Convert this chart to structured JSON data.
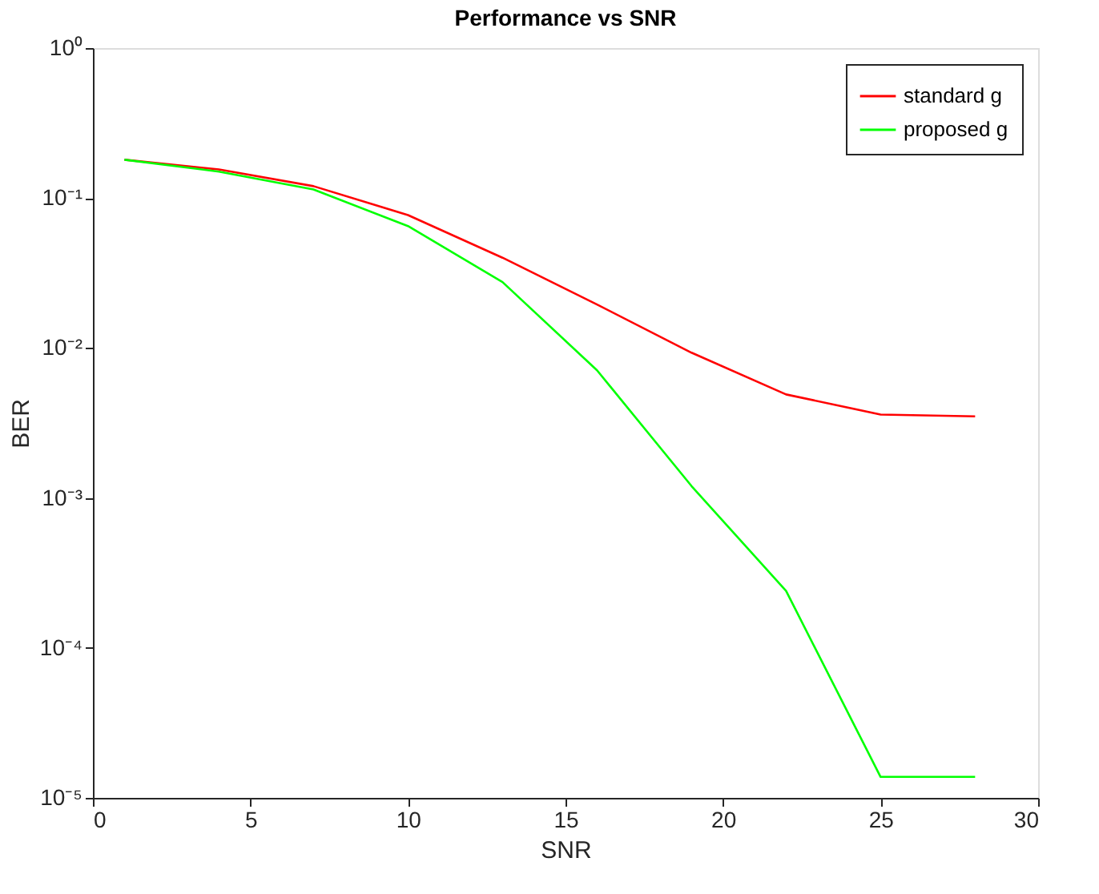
{
  "chart_data": {
    "type": "line",
    "title": "Performance vs SNR",
    "xlabel": "SNR",
    "ylabel": "BER",
    "x": [
      1,
      4,
      7,
      10,
      13,
      16,
      19,
      22,
      25,
      28
    ],
    "series": [
      {
        "name": "standard g",
        "color": "#ff0000",
        "values": [
          0.18,
          0.155,
          0.12,
          0.077,
          0.04,
          0.0195,
          0.0093,
          0.0049,
          0.0036,
          0.0035
        ]
      },
      {
        "name": "proposed g",
        "color": "#00ff00",
        "values": [
          0.18,
          0.15,
          0.114,
          0.065,
          0.0275,
          0.0071,
          0.0012,
          0.00024,
          1.38e-05,
          1.38e-05
        ]
      }
    ],
    "log": "y",
    "xlim": [
      0,
      30
    ],
    "xticks": [
      0,
      5,
      10,
      15,
      20,
      25,
      30
    ],
    "ylim": [
      1e-05,
      1
    ],
    "yticks": [
      {
        "value": 1e-05,
        "label": "10⁻⁵"
      },
      {
        "value": 0.0001,
        "label": "10⁻⁴"
      },
      {
        "value": 0.001,
        "label": "10⁻³"
      },
      {
        "value": 0.01,
        "label": "10⁻²"
      },
      {
        "value": 0.1,
        "label": "10⁻¹"
      },
      {
        "value": 1,
        "label": "10⁰"
      }
    ],
    "grid": false,
    "legend": "top right",
    "marker": "none",
    "line_style": "solid"
  }
}
